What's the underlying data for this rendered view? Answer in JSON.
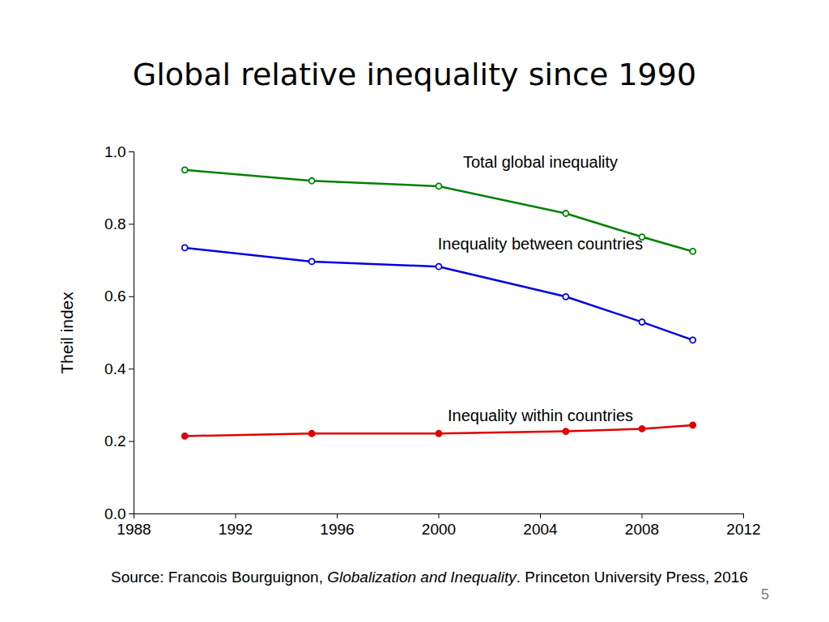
{
  "chart_data": {
    "type": "line",
    "title": "Global relative inequality since 1990",
    "y_label": "Theil index",
    "x": [
      1990,
      1995,
      2000,
      2005,
      2008,
      2010
    ],
    "xlim": [
      1988,
      2012
    ],
    "xticks": [
      1988,
      1992,
      1996,
      2000,
      2004,
      2008,
      2012
    ],
    "ylim": [
      0,
      1
    ],
    "yticks": [
      {
        "value": 0,
        "label": "0.0"
      },
      0.2,
      0.4,
      0.6,
      0.8,
      {
        "value": 1,
        "label": "1.0"
      }
    ],
    "grid": false,
    "series": [
      {
        "name": "Total global inequality",
        "color": "#008000",
        "marker": "circle-open",
        "values": [
          0.95,
          0.92,
          0.905,
          0.83,
          0.765,
          0.725
        ],
        "label_position": {
          "x": 2004,
          "y": 0.97
        }
      },
      {
        "name": "Inequality between countries",
        "color": "#0000e0",
        "marker": "circle-open",
        "values": [
          0.735,
          0.697,
          0.683,
          0.6,
          0.53,
          0.48
        ],
        "label_position": {
          "x": 2004,
          "y": 0.745
        }
      },
      {
        "name": "Inequality within countries",
        "color": "#e00000",
        "marker": "circle",
        "values": [
          0.215,
          0.222,
          0.222,
          0.228,
          0.235,
          0.245
        ],
        "label_position": {
          "x": 2004,
          "y": 0.27
        }
      }
    ],
    "caption": [
      {
        "text": "Source: Francois Bourguignon, ",
        "italic": false
      },
      {
        "text": "Globalization and Inequality",
        "italic": true
      },
      {
        "text": ". Princeton University Press, 2016",
        "italic": false
      }
    ],
    "page_number": "5"
  }
}
